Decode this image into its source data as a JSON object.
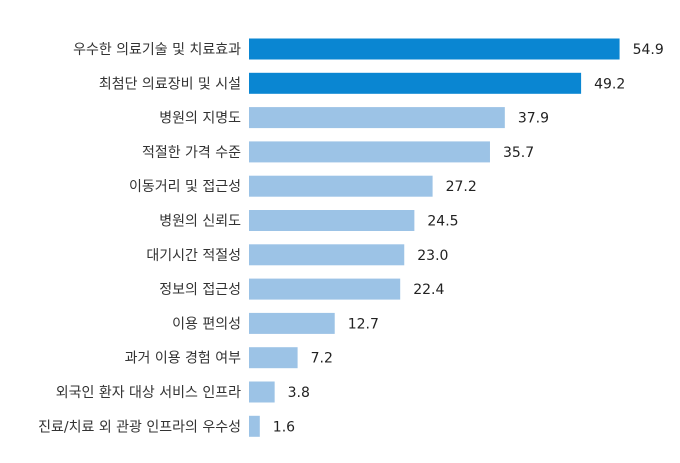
{
  "chart_data": {
    "type": "bar",
    "orientation": "horizontal",
    "categories": [
      "우수한 의료기술 및 치료효과",
      "최첨단 의료장비 및 시설",
      "병원의 지명도",
      "적절한 가격 수준",
      "이동거리 및 접근성",
      "병원의 신뢰도",
      "대기시간 적절성",
      "정보의 접근성",
      "이용 편의성",
      "과거 이용 경험 여부",
      "외국인 환자 대상 서비스 인프라",
      "진료/치료 외 관광 인프라의 우수성"
    ],
    "values": [
      54.9,
      49.2,
      37.9,
      35.7,
      27.2,
      24.5,
      23.0,
      22.4,
      12.7,
      7.2,
      3.8,
      1.6
    ],
    "value_labels": [
      "54.9",
      "49.2",
      "37.9",
      "35.7",
      "27.2",
      "24.5",
      "23.0",
      "22.4",
      "12.7",
      "7.2",
      "3.8",
      "1.6"
    ],
    "highlight_count": 2,
    "colors": {
      "highlight": "#0a86d2",
      "normal": "#9cc3e6"
    },
    "xlim": [
      0,
      60
    ],
    "grid": false,
    "legend": "none"
  }
}
